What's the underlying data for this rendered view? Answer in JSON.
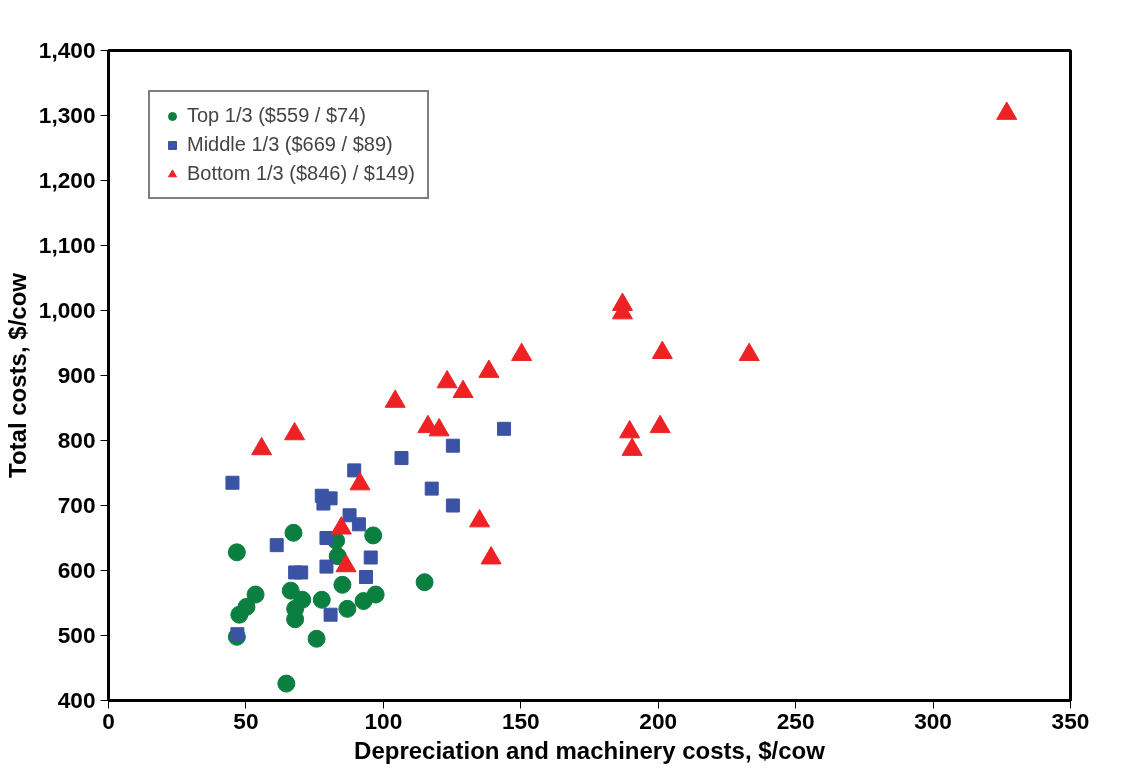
{
  "chart_data": {
    "type": "scatter",
    "xlabel": "Depreciation and machinery costs, $/cow",
    "ylabel": "Total costs, $/cow",
    "xlim": [
      0,
      350
    ],
    "xticks": [
      0,
      50,
      100,
      150,
      200,
      250,
      300,
      350
    ],
    "ylim": [
      400,
      1400
    ],
    "yticks": [
      400,
      500,
      600,
      700,
      800,
      900,
      {
        "value": 1000,
        "label": "1,000"
      },
      {
        "value": 1100,
        "label": "1,100"
      },
      {
        "value": 1200,
        "label": "1,200"
      },
      {
        "value": 1300,
        "label": "1,300"
      },
      {
        "value": 1400,
        "label": "1,400"
      }
    ],
    "grid": false,
    "legend": "top left",
    "series": [
      {
        "name": "Top 1/3 ($559 / $74)",
        "color": "#0a7f3f",
        "marker": "circle",
        "x": [
          67.3,
          46.7,
          82.8,
          96.3,
          83.4,
          85.1,
          115,
          53.5,
          66.3,
          70.5,
          77.6,
          50.2,
          47.6,
          67.9,
          67.9,
          86.9,
          92.8,
          97.2,
          46.7,
          75.7,
          64.7
        ],
        "values": [
          658,
          628,
          646,
          654,
          622,
          578,
          582,
          563,
          569,
          555,
          555,
          544,
          532,
          541,
          525,
          541,
          553,
          563,
          498,
          495,
          426
        ]
      },
      {
        "name": "Middle 1/3 ($669 / $89)",
        "color": "#3a53a4",
        "marker": "square",
        "x": [
          45.1,
          106.6,
          125.3,
          89.4,
          117.6,
          125.3,
          77.6,
          80.8,
          78.2,
          87.7,
          91.1,
          61.2,
          79.3,
          95.4,
          67.9,
          70.1,
          79.3,
          93.7,
          80.8,
          46.9,
          143.9
        ],
        "values": [
          735,
          773,
          792,
          754,
          726,
          700,
          715,
          711,
          703,
          685,
          671,
          639,
          650,
          620,
          597,
          597,
          606,
          590,
          532,
          502,
          818
        ]
      },
      {
        "name": "Bottom 1/3 ($846) / $149)",
        "color": "#ee2224",
        "marker": "triangle",
        "x": [
          187,
          187,
          201.5,
          233.1,
          150.3,
          138.4,
          123.2,
          129,
          104.3,
          116.2,
          120.3,
          200.7,
          189.6,
          190.5,
          67.7,
          55.7,
          91.5,
          84.7,
          86.4,
          135,
          139.2,
          326.8
        ],
        "values": [
          1009,
          996,
          935,
          932,
          932,
          906,
          890,
          875,
          860,
          821,
          816,
          821,
          813,
          786,
          810,
          787,
          733,
          665,
          607,
          676,
          619,
          1303
        ]
      }
    ]
  }
}
